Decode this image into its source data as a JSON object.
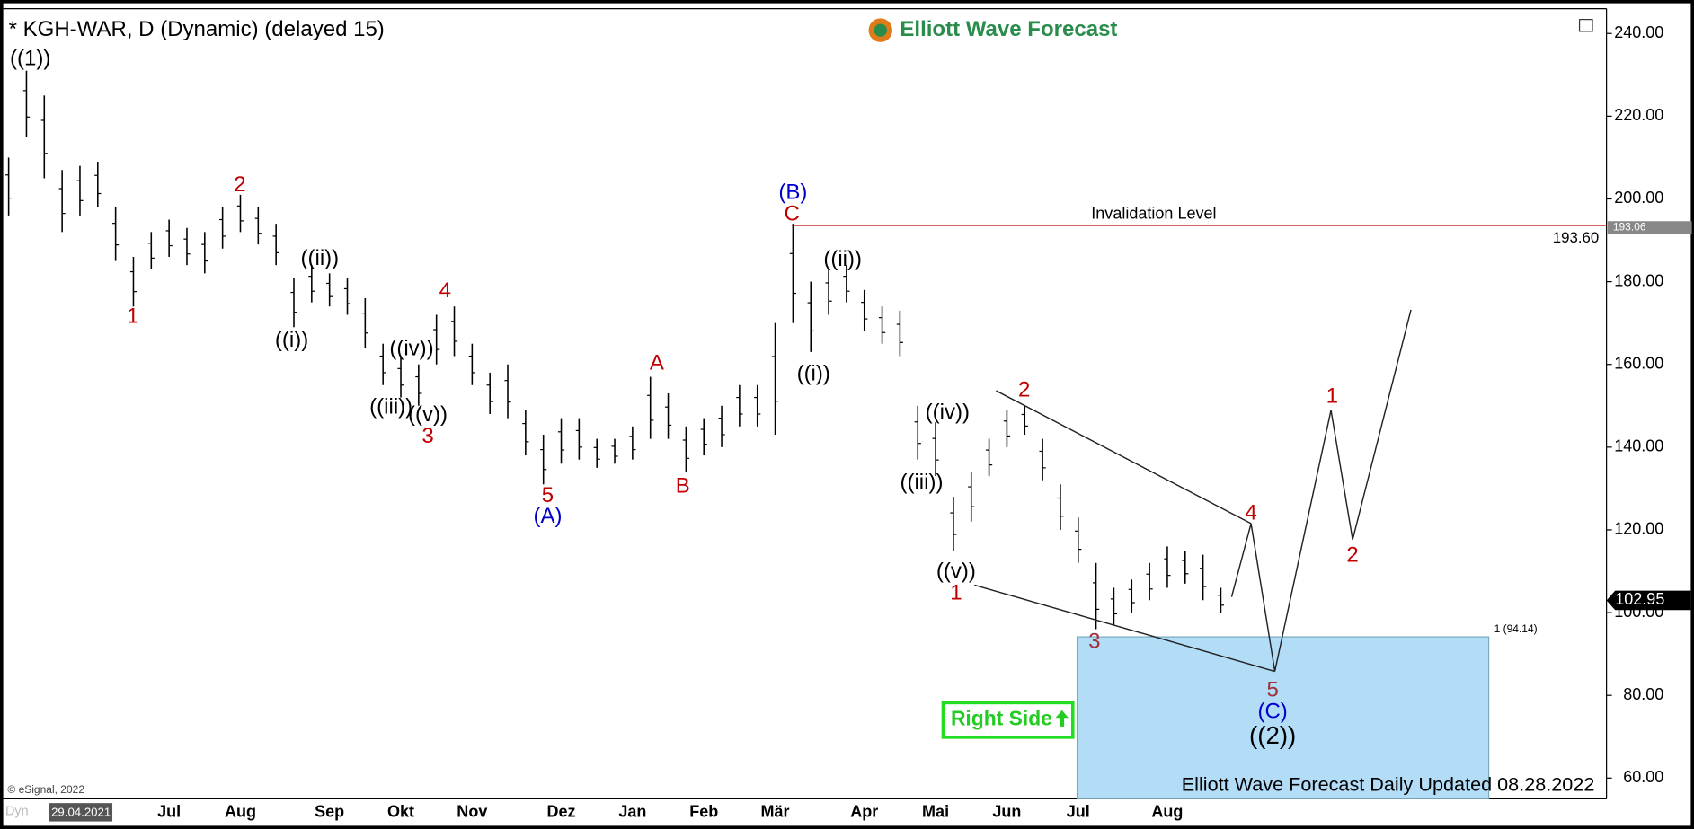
{
  "chart_data": {
    "type": "range_bar",
    "title": "* KGH-WAR, D (Dynamic) (delayed 15)",
    "logo": "Elliott Wave Forecast",
    "copyright": "© eSignal, 2022",
    "footer_left": "Dyn",
    "footer": "Elliott Wave Forecast Daily Updated 08.28.2022",
    "badge": "Right Side",
    "categories": [
      "29.04.2021",
      null,
      null,
      null,
      null,
      null,
      null,
      null,
      null,
      "Jul",
      null,
      null,
      null,
      "Aug",
      null,
      null,
      null,
      null,
      "Sep",
      null,
      null,
      null,
      "Okt",
      null,
      null,
      null,
      "Nov",
      null,
      null,
      null,
      null,
      "Dez",
      null,
      null,
      null,
      "Jan",
      null,
      null,
      null,
      "Feb",
      null,
      null,
      null,
      "Mär",
      null,
      null,
      null,
      null,
      "Apr",
      null,
      null,
      null,
      "Mai",
      null,
      null,
      null,
      "Jun",
      null,
      null,
      null,
      "Jul",
      null,
      null,
      null,
      null,
      "Aug",
      null,
      null,
      null
    ],
    "high": [
      210,
      231,
      225,
      207,
      208,
      209,
      198,
      186,
      192,
      195,
      193,
      192,
      198,
      201,
      198,
      194,
      181,
      184,
      182,
      181,
      176,
      165,
      162,
      160,
      172,
      174,
      165,
      158,
      160,
      149,
      143,
      147,
      147,
      142,
      142,
      145,
      157,
      153,
      145,
      147,
      150,
      155,
      155,
      170,
      194,
      180,
      183,
      184,
      178,
      174,
      173,
      150,
      146,
      128,
      134,
      142,
      149,
      150,
      142,
      131,
      123,
      112,
      106,
      108,
      112,
      116,
      115,
      114,
      106
    ],
    "low": [
      196,
      215,
      205,
      192,
      196,
      198,
      185,
      174,
      183,
      186,
      184,
      182,
      188,
      192,
      189,
      184,
      169,
      175,
      174,
      172,
      164,
      155,
      152,
      150,
      160,
      162,
      155,
      148,
      147,
      138,
      131,
      136,
      137,
      135,
      136,
      137,
      142,
      142,
      134,
      138,
      140,
      145,
      145,
      143,
      170,
      163,
      172,
      175,
      168,
      165,
      162,
      137,
      133,
      115,
      122,
      133,
      140,
      143,
      132,
      120,
      112,
      96,
      97,
      100,
      103,
      106,
      107,
      103,
      100
    ],
    "color": "#000000",
    "ylim": [
      55,
      246
    ],
    "yticks": [
      {
        "value": 60,
        "label": "60.00"
      },
      {
        "value": 80,
        "label": "80.00"
      },
      {
        "value": 100,
        "label": "100.00"
      },
      {
        "value": 120,
        "label": "120.00"
      },
      {
        "value": 140,
        "label": "140.00"
      },
      {
        "value": 160,
        "label": "160.00"
      },
      {
        "value": 180,
        "label": "180.00"
      },
      {
        "value": 200,
        "label": "200.00"
      },
      {
        "value": 220,
        "label": "220.00"
      },
      {
        "value": 240,
        "label": "240.00"
      }
    ],
    "invalidation": {
      "text": "Invalidation Level",
      "value": 193.6,
      "value_label": "193.60"
    },
    "marker_price": 193.06,
    "last_price": 102.95,
    "target_zone": {
      "label": "1 (94.14)",
      "top": 94.14
    },
    "annotations": [
      "((1))",
      "1",
      "2",
      "((i))",
      "((ii))",
      "((iii))",
      "((iv))",
      "((v))",
      "3",
      "4",
      "5",
      "(A)",
      "A",
      "B",
      "(B)",
      "C",
      "((i))",
      "((ii))",
      "((iv))",
      "((iii))",
      "((v))",
      "1",
      "2",
      "3",
      "4",
      "5",
      "(C)",
      "((2))",
      "1",
      "2"
    ]
  }
}
